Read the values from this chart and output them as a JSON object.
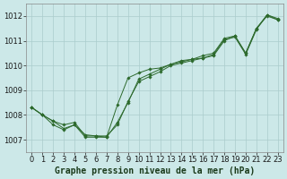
{
  "title": "Graphe pression niveau de la mer (hPa)",
  "background_color": "#cce8e8",
  "grid_color": "#aacccc",
  "line_color": "#2d6a2d",
  "marker_color": "#2d6a2d",
  "xlim": [
    -0.5,
    23.5
  ],
  "ylim": [
    1006.5,
    1012.5
  ],
  "yticks": [
    1007,
    1008,
    1009,
    1010,
    1011,
    1012
  ],
  "xticks": [
    0,
    1,
    2,
    3,
    4,
    5,
    6,
    7,
    8,
    9,
    10,
    11,
    12,
    13,
    14,
    15,
    16,
    17,
    18,
    19,
    20,
    21,
    22,
    23
  ],
  "series": [
    [
      1008.3,
      1008.0,
      1007.75,
      1007.45,
      1007.6,
      1007.2,
      1007.15,
      1007.1,
      1007.7,
      1008.5,
      1009.45,
      1009.65,
      1009.85,
      1010.05,
      1010.2,
      1010.25,
      1010.3,
      1010.4,
      1011.0,
      1011.2,
      1010.5,
      1011.5,
      1012.0,
      1011.85
    ],
    [
      1008.3,
      1008.0,
      1007.75,
      1007.6,
      1007.7,
      1007.15,
      1007.15,
      1007.15,
      1007.6,
      1008.55,
      1009.35,
      1009.55,
      1009.75,
      1010.0,
      1010.1,
      1010.2,
      1010.3,
      1010.45,
      1011.05,
      1011.15,
      1010.45,
      1011.45,
      1012.05,
      1011.85
    ],
    [
      1008.3,
      1008.0,
      1007.6,
      1007.4,
      1007.6,
      1007.1,
      1007.1,
      1007.1,
      1008.4,
      1009.5,
      1009.7,
      1009.85,
      1009.9,
      1010.05,
      1010.15,
      1010.25,
      1010.4,
      1010.5,
      1011.1,
      1011.2,
      1010.5,
      1011.5,
      1012.05,
      1011.9
    ]
  ],
  "title_fontsize": 7,
  "tick_labelsize": 6
}
